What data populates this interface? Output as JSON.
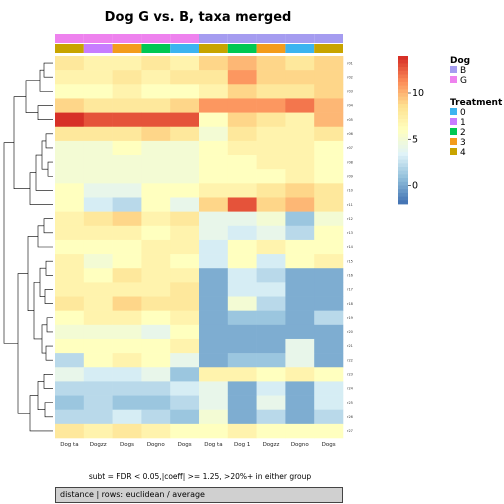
{
  "title": "Dog G vs. B, taxa merged",
  "subtitle": "subt = FDR < 0.05,|coeff| >= 1.25, >20%+ in either group",
  "footer": "distance | rows: euclidean / average",
  "colors": {
    "scale": [
      "#4575b4",
      "#91bfdb",
      "#e0f3f8",
      "#ffffbf",
      "#fee090",
      "#fc8d59",
      "#d73027"
    ],
    "dog": {
      "B": "#a59cf0",
      "G": "#ee82ee"
    },
    "treatment": {
      "0": "#3cb4f0",
      "1": "#c77cff",
      "2": "#00c853",
      "3": "#f39c1c",
      "4": "#c8a400"
    }
  },
  "legend": {
    "dog_title": "Dog",
    "dog_items": [
      "B",
      "G"
    ],
    "treatment_title": "Treatment",
    "treatment_items": [
      "0",
      "1",
      "2",
      "3",
      "4"
    ]
  },
  "chart_data": {
    "type": "heatmap",
    "title": "Dog G vs. B, taxa merged",
    "columns": [
      "Dog ta",
      "Dogzz",
      "Dogs",
      "Dogno",
      "Dogs",
      "Dog ta",
      "Dog 1",
      "Dogzz",
      "Dogno",
      "Dogs"
    ],
    "column_dog": [
      "G",
      "G",
      "G",
      "G",
      "G",
      "B",
      "B",
      "B",
      "B",
      "B"
    ],
    "column_treatment": [
      "4",
      "1",
      "3",
      "2",
      "0",
      "4",
      "2",
      "3",
      "0",
      "4"
    ],
    "rows": [
      "r01",
      "r02",
      "r03",
      "r04",
      "r05",
      "r06",
      "r07",
      "r08",
      "r09",
      "r10",
      "r11",
      "r12",
      "r13",
      "r14",
      "r15",
      "r16",
      "r17",
      "r18",
      "r19",
      "r20",
      "r21",
      "r22",
      "r23",
      "r24",
      "r25",
      "r26",
      "r27"
    ],
    "values": [
      [
        8,
        7,
        7,
        8,
        7,
        9,
        10,
        9,
        8,
        9
      ],
      [
        7,
        7,
        8,
        7,
        8,
        8,
        11,
        9,
        9,
        9
      ],
      [
        6,
        6,
        7,
        6,
        6,
        7,
        9,
        8,
        8,
        9
      ],
      [
        9,
        8,
        8,
        8,
        9,
        11,
        11,
        11,
        12,
        10
      ],
      [
        14,
        13,
        13,
        13,
        13,
        6,
        9,
        8,
        7,
        10
      ],
      [
        8,
        8,
        8,
        9,
        8,
        5,
        8,
        7,
        7,
        8
      ],
      [
        5,
        5,
        6,
        5,
        5,
        6,
        7,
        7,
        7,
        6
      ],
      [
        5,
        5,
        5,
        5,
        5,
        6,
        6,
        7,
        7,
        6
      ],
      [
        5,
        5,
        5,
        5,
        5,
        6,
        6,
        6,
        7,
        6
      ],
      [
        6,
        4,
        4,
        6,
        6,
        7,
        7,
        8,
        9,
        8
      ],
      [
        6,
        3,
        2,
        6,
        4,
        9,
        13,
        9,
        10,
        8
      ],
      [
        7,
        8,
        9,
        7,
        8,
        4,
        4,
        5,
        1,
        5
      ],
      [
        7,
        7,
        7,
        6,
        7,
        4,
        3,
        4,
        2,
        6
      ],
      [
        6,
        6,
        6,
        7,
        7,
        3,
        6,
        7,
        6,
        6
      ],
      [
        7,
        5,
        6,
        7,
        6,
        3,
        6,
        3,
        6,
        7
      ],
      [
        7,
        6,
        8,
        7,
        7,
        0,
        3,
        2,
        0,
        0
      ],
      [
        7,
        7,
        7,
        7,
        8,
        0,
        3,
        3,
        0,
        0
      ],
      [
        8,
        7,
        9,
        8,
        8,
        0,
        5,
        2,
        0,
        0
      ],
      [
        6,
        7,
        7,
        6,
        7,
        0,
        1,
        1,
        0,
        2
      ],
      [
        5,
        5,
        5,
        4,
        6,
        0,
        0,
        0,
        0,
        0
      ],
      [
        6,
        6,
        6,
        6,
        7,
        0,
        0,
        0,
        4,
        0
      ],
      [
        2,
        6,
        7,
        6,
        4,
        0,
        1,
        1,
        4,
        0
      ],
      [
        4,
        3,
        3,
        4,
        1,
        7,
        7,
        6,
        7,
        6
      ],
      [
        2,
        2,
        2,
        2,
        3,
        4,
        0,
        3,
        0,
        3
      ],
      [
        1,
        2,
        1,
        1,
        2,
        4,
        0,
        4,
        0,
        3
      ],
      [
        2,
        2,
        3,
        2,
        1,
        5,
        0,
        2,
        0,
        2
      ],
      [
        8,
        7,
        8,
        7,
        6,
        6,
        7,
        6,
        6,
        6
      ]
    ],
    "color_scale": {
      "min": -2,
      "max": 14,
      "ticks": [
        0,
        5,
        10
      ]
    }
  }
}
